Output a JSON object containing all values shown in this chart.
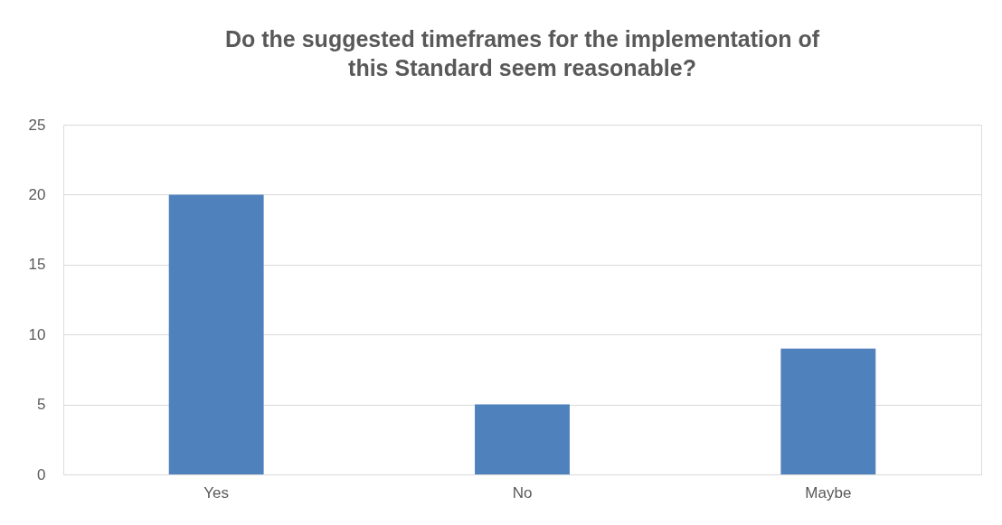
{
  "chart_data": {
    "type": "bar",
    "title": "Do the suggested timeframes for the implementation of\nthis Standard seem reasonable?",
    "categories": [
      "Yes",
      "No",
      "Maybe"
    ],
    "values": [
      20,
      5,
      9
    ],
    "color": "#4f81bd",
    "ylim": [
      0,
      25
    ],
    "yticks": [
      0,
      5,
      10,
      15,
      20,
      25
    ],
    "grid": "y",
    "legend": false
  }
}
